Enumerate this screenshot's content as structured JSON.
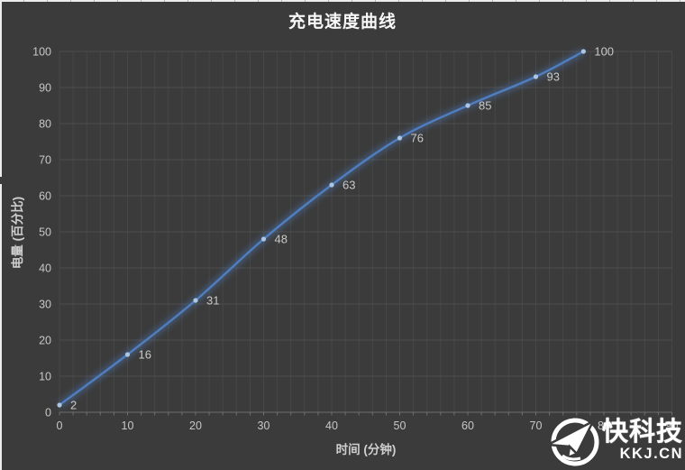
{
  "title": "充电速度曲线",
  "chart_data": {
    "type": "line",
    "title": "充电速度曲线",
    "xlabel": "时间 (分钟)",
    "ylabel": "电量 (百分比)",
    "x": [
      0,
      10,
      20,
      30,
      40,
      50,
      60,
      70,
      77
    ],
    "values": [
      2,
      16,
      31,
      48,
      63,
      76,
      85,
      93,
      100
    ],
    "data_labels": [
      "2",
      "16",
      "31",
      "48",
      "63",
      "76",
      "85",
      "93",
      "100"
    ],
    "x_ticks": [
      0,
      10,
      20,
      30,
      40,
      50,
      60,
      70,
      80,
      90
    ],
    "y_ticks": [
      0,
      10,
      20,
      30,
      40,
      50,
      60,
      70,
      80,
      90,
      100
    ],
    "xlim": [
      0,
      90
    ],
    "ylim": [
      0,
      100
    ],
    "minor_x_step": 2,
    "grid": "on",
    "smooth": true,
    "legend": "none",
    "colors": {
      "background": "#3b3b3b",
      "line": "#4f7ec1",
      "line_glow": "#4f7ec1",
      "marker": "#aec6e4",
      "grid_vertical": "#474747",
      "grid_horizontal": "#4e4e4e",
      "axis_line": "#6e6e6e",
      "tick_label": "#c7c7c7",
      "data_label": "#c9c9c9",
      "title_text": "#f7f7f7"
    }
  },
  "watermark": {
    "brand": "快科技",
    "domain": "KKJ.CN",
    "icon": "paper-plane-in-circle-icon"
  }
}
